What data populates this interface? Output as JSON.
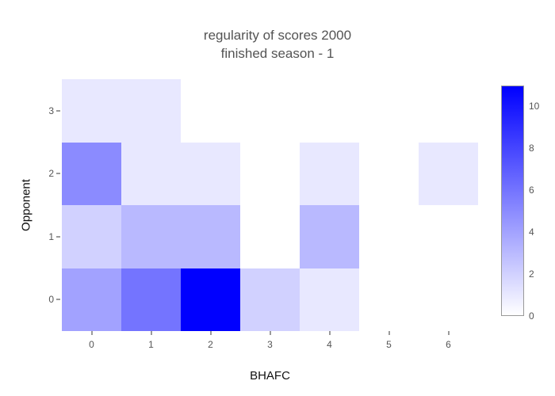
{
  "figure": {
    "title_line1": "regularity of scores 2000",
    "title_line2": "finished season - 1"
  },
  "chart_data": {
    "type": "heatmap",
    "title": "regularity of scores 2000",
    "subtitle": "finished season - 1",
    "xlabel": "BHAFC",
    "ylabel": "Opponent",
    "x": [
      0,
      1,
      2,
      3,
      4,
      5,
      6
    ],
    "y": [
      0,
      1,
      2,
      3
    ],
    "x_tick_labels": [
      "0",
      "1",
      "2",
      "3",
      "4",
      "5",
      "6"
    ],
    "y_tick_labels": [
      "0",
      "1",
      "2",
      "3"
    ],
    "z_rows_by_opponent_score": [
      [
        4,
        6,
        11,
        2,
        1,
        null,
        null
      ],
      [
        2,
        3,
        3,
        null,
        3,
        null,
        null
      ],
      [
        5,
        1,
        1,
        null,
        1,
        null,
        1
      ],
      [
        1,
        1,
        null,
        null,
        null,
        null,
        null
      ]
    ],
    "zmin": 0,
    "zmax": 11,
    "colorbar_ticks": [
      "0",
      "2",
      "4",
      "6",
      "8",
      "10"
    ],
    "colorscale_low": "#FFFFFF",
    "colorscale_high": "#0000FF",
    "grid": false,
    "legend_position": "right-colorbar"
  }
}
